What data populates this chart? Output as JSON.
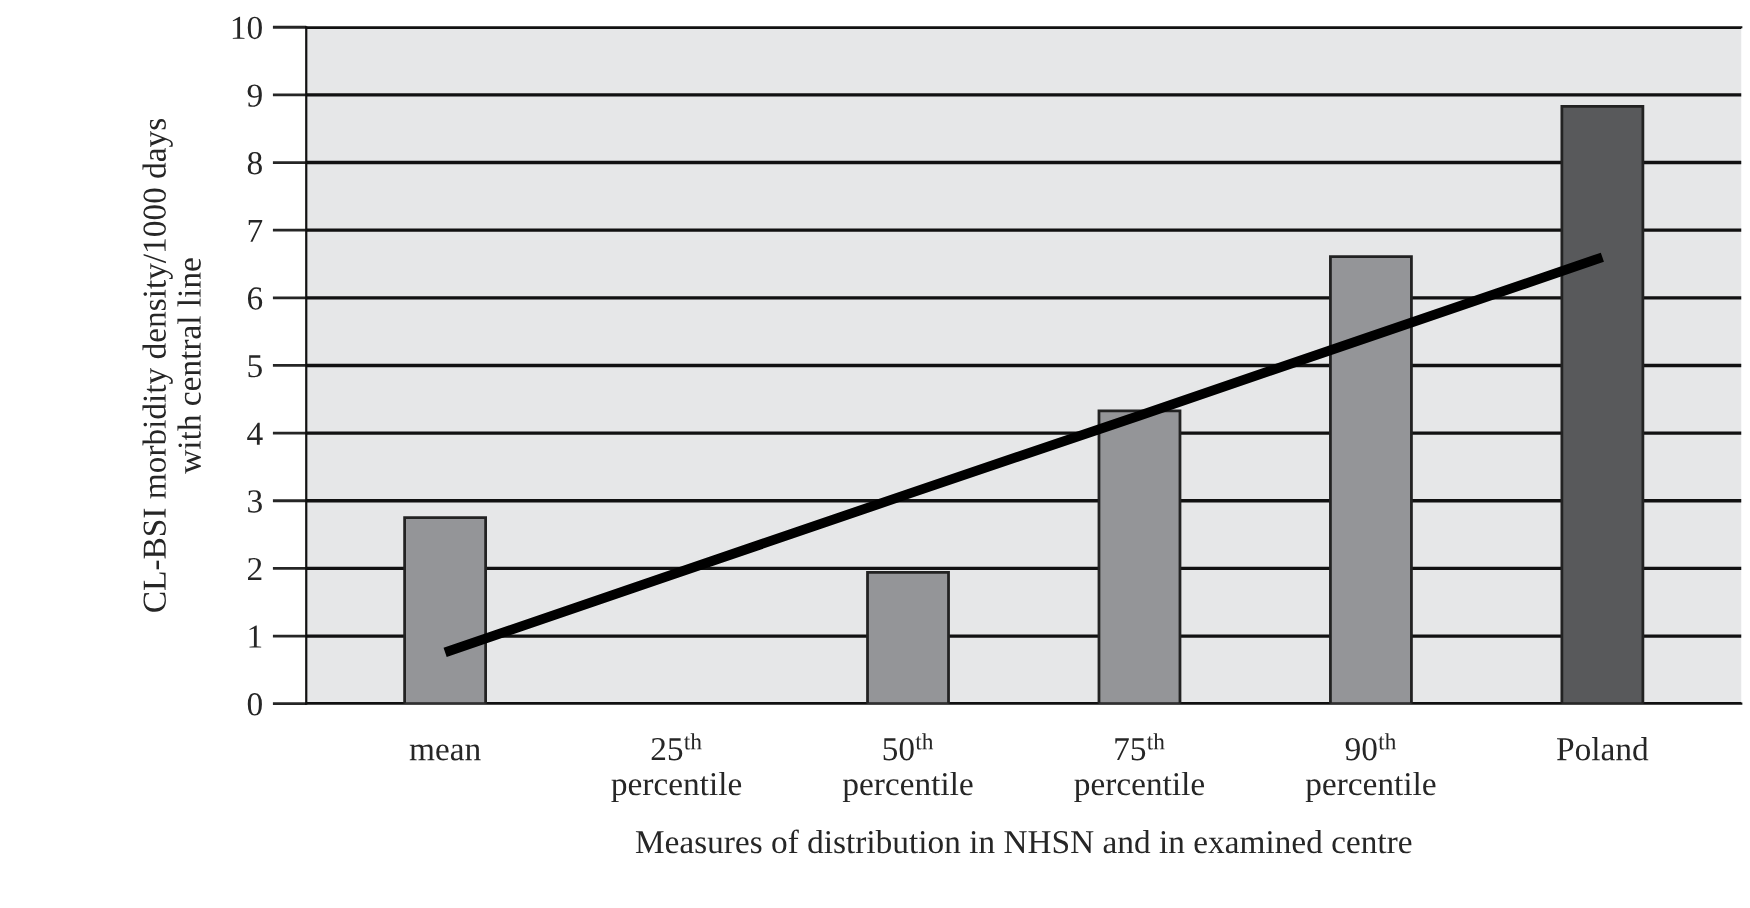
{
  "chart_data": {
    "type": "bar",
    "xlabel": "Measures of distribution in NHSN and in examined centre",
    "ylabel": "CL-BSI morbidity density/1000 days\nwith central line",
    "categories": [
      "mean",
      "25$^{th}$\npercentile",
      "50$^{th}$\npercentile",
      "75$^{th}$\npercentile",
      "90$^{th}$\npercentile",
      "Poland"
    ],
    "series": [
      {
        "colors": [
          "#949598",
          "#949598",
          "#949598",
          "#949598",
          "#949598",
          "#58595b"
        ],
        "values": [
          2.75,
          null,
          1.94,
          4.33,
          6.61,
          8.83
        ]
      },
      {
        "type": "line",
        "color": "#000000",
        "values": [
          0.76,
          1.93,
          3.1,
          4.26,
          5.43,
          6.6
        ]
      }
    ],
    "ylim": [
      0,
      10
    ],
    "yticks": [
      0,
      1,
      2,
      3,
      4,
      5,
      6,
      7,
      8,
      9,
      10
    ],
    "grid": "y",
    "legend": false
  }
}
